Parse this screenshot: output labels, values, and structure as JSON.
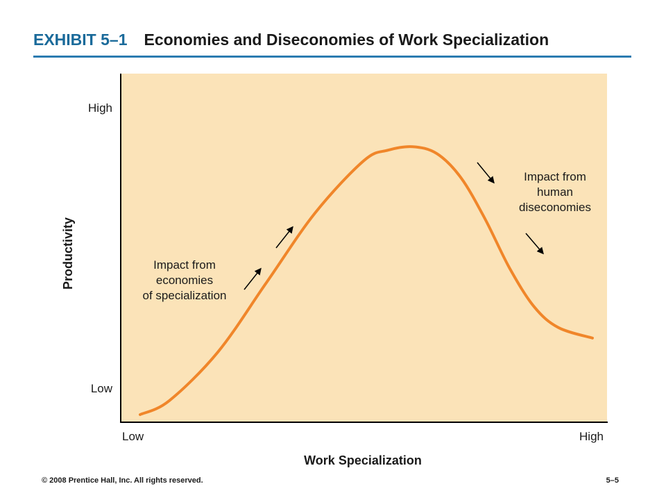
{
  "header": {
    "exhibit": "EXHIBIT 5–1",
    "title": "Economies and Diseconomies of Work Specialization"
  },
  "colors": {
    "accent": "#1a6a9a",
    "rule": "#2b7bb0",
    "plot_background": "#fbe3b8",
    "curve": "#f0862a"
  },
  "chart_data": {
    "type": "line",
    "title": "Economies and Diseconomies of Work Specialization",
    "xlabel": "Work Specialization",
    "ylabel": "Productivity",
    "x_ticks": [
      "Low",
      "High"
    ],
    "y_ticks": [
      "Low",
      "High"
    ],
    "xlim": [
      0,
      1
    ],
    "ylim": [
      0,
      1
    ],
    "grid": false,
    "series": [
      {
        "x": [
          0.04,
          0.1,
          0.2,
          0.3,
          0.4,
          0.5,
          0.55,
          0.6,
          0.65,
          0.7,
          0.75,
          0.8,
          0.85,
          0.9,
          0.97
        ],
        "y": [
          0.02,
          0.06,
          0.2,
          0.4,
          0.6,
          0.75,
          0.78,
          0.79,
          0.77,
          0.7,
          0.58,
          0.44,
          0.33,
          0.27,
          0.24
        ]
      }
    ],
    "annotations": [
      {
        "text_lines": [
          "Impact from",
          "economies",
          "of specialization"
        ]
      },
      {
        "text_lines": [
          "Impact from",
          "human",
          "diseconomies"
        ]
      }
    ]
  },
  "footer": {
    "copyright": "© 2008 Prentice Hall, Inc. All rights reserved.",
    "page": "5–5"
  }
}
